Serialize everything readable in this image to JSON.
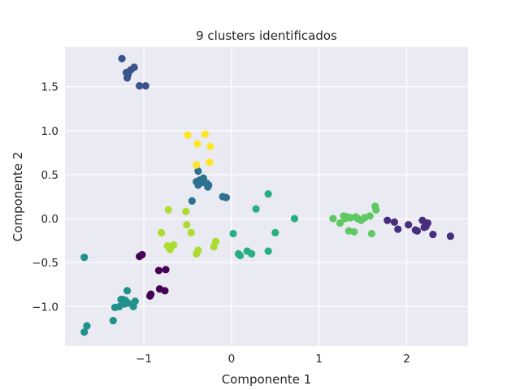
{
  "chart_data": {
    "type": "scatter",
    "title": "9 clusters identificados",
    "xlabel": "Componente 1",
    "ylabel": "Componente 2",
    "xlim": [
      -1.9,
      2.7
    ],
    "ylim": [
      -1.45,
      1.95
    ],
    "xticks": [
      -1,
      0,
      1,
      2
    ],
    "xtick_labels": [
      "−1",
      "0",
      "1",
      "2"
    ],
    "yticks": [
      -1.0,
      -0.5,
      0.0,
      0.5,
      1.0,
      1.5
    ],
    "ytick_labels": [
      "−1.0",
      "−0.5",
      "0.0",
      "0.5",
      "1.0",
      "1.5"
    ],
    "grid": true,
    "background": "#eaeaf2",
    "series": [
      {
        "color": "#440154",
        "x": [
          -1.05,
          -1.02,
          -0.83,
          -0.75,
          -0.82,
          -0.76,
          -0.92,
          -0.93
        ],
        "y": [
          -0.43,
          -0.41,
          -0.59,
          -0.58,
          -0.8,
          -0.82,
          -0.86,
          -0.88
        ]
      },
      {
        "color": "#472d7b",
        "x": [
          1.78,
          1.86,
          1.9,
          2.02,
          2.1,
          2.12,
          2.18,
          2.22,
          2.24,
          2.2,
          2.3,
          2.5
        ],
        "y": [
          -0.02,
          -0.04,
          -0.12,
          -0.07,
          -0.13,
          -0.14,
          -0.02,
          -0.09,
          -0.05,
          -0.1,
          -0.18,
          -0.2
        ]
      },
      {
        "color": "#3b528b",
        "x": [
          -1.25,
          -1.2,
          -1.15,
          -1.11,
          -1.18,
          -1.19,
          -1.05,
          -0.98
        ],
        "y": [
          1.82,
          1.66,
          1.69,
          1.72,
          1.64,
          1.6,
          1.51,
          1.51
        ]
      },
      {
        "color": "#2c728e",
        "x": [
          -0.45,
          -0.38,
          -0.4,
          -0.36,
          -0.32,
          -0.28,
          -0.27,
          -0.38,
          -0.33,
          -0.26,
          -0.1,
          -0.06
        ],
        "y": [
          0.2,
          0.54,
          0.42,
          0.44,
          0.46,
          0.4,
          0.36,
          0.38,
          0.41,
          0.38,
          0.25,
          0.24
        ]
      },
      {
        "color": "#21918c",
        "x": [
          -1.68,
          -1.65,
          -1.68,
          -1.35,
          -1.33,
          -1.28,
          -1.22,
          -1.26,
          -1.18,
          -1.12,
          -1.1,
          -1.24,
          -1.21,
          -1.19
        ],
        "y": [
          -0.44,
          -1.22,
          -1.29,
          -1.16,
          -1.01,
          -1.0,
          -0.97,
          -0.92,
          -0.96,
          -1.0,
          -0.94,
          -0.92,
          -0.93,
          -0.82
        ]
      },
      {
        "color": "#28ae80",
        "x": [
          0.02,
          0.08,
          0.1,
          0.18,
          0.23,
          0.28,
          0.42,
          0.42,
          0.5,
          0.72
        ],
        "y": [
          -0.17,
          -0.4,
          -0.42,
          -0.37,
          -0.4,
          0.11,
          0.28,
          -0.37,
          -0.16,
          0.0
        ]
      },
      {
        "color": "#5ec962",
        "x": [
          1.16,
          1.24,
          1.28,
          1.3,
          1.32,
          1.34,
          1.36,
          1.4,
          1.42,
          1.44,
          1.48,
          1.52,
          1.58,
          1.6,
          1.64,
          1.65
        ],
        "y": [
          0.0,
          -0.05,
          0.03,
          0.0,
          0.02,
          -0.14,
          0.01,
          -0.15,
          0.02,
          0.0,
          -0.02,
          0.01,
          0.03,
          -0.17,
          0.14,
          0.1
        ]
      },
      {
        "color": "#addc30",
        "x": [
          -0.72,
          -0.8,
          -0.73,
          -0.7,
          -0.66,
          -0.52,
          -0.51,
          -0.46,
          -0.4,
          -0.38,
          -0.2,
          -0.18
        ],
        "y": [
          0.1,
          -0.16,
          -0.31,
          -0.35,
          -0.3,
          0.08,
          -0.07,
          -0.16,
          -0.4,
          -0.36,
          -0.32,
          -0.26
        ]
      },
      {
        "color": "#fde725",
        "x": [
          -0.5,
          -0.39,
          -0.3,
          -0.24,
          -0.25,
          -0.4
        ],
        "y": [
          0.95,
          0.85,
          0.96,
          0.82,
          0.64,
          0.61
        ]
      }
    ]
  }
}
